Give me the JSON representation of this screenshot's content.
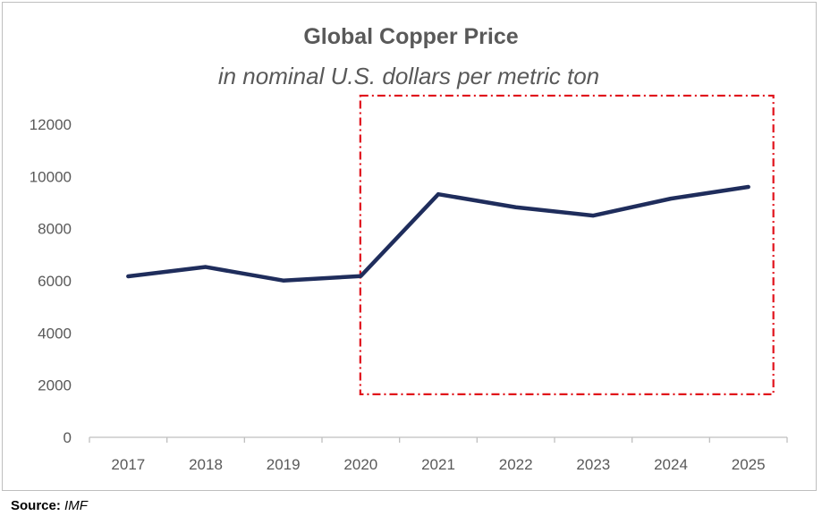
{
  "chart_data": {
    "type": "line",
    "title": "Global Copper Price",
    "subtitle": "in nominal U.S. dollars per metric ton",
    "xlabel": "",
    "ylabel": "",
    "categories": [
      "2017",
      "2018",
      "2019",
      "2020",
      "2021",
      "2022",
      "2023",
      "2024",
      "2025"
    ],
    "series": [
      {
        "name": "Copper price",
        "values": [
          6170,
          6530,
          6010,
          6180,
          9320,
          8820,
          8500,
          9150,
          9600
        ]
      }
    ],
    "ylim": [
      0,
      12000
    ],
    "yticks": [
      "0",
      "2000",
      "4000",
      "6000",
      "8000",
      "10000",
      "12000"
    ],
    "grid": false,
    "highlight": {
      "from_category": "2020",
      "to_category": "2025",
      "y_range": [
        1650,
        13100
      ]
    },
    "colors": {
      "line": "#1f2d5c",
      "highlight": "#e0121b",
      "text": "#595959",
      "axis": "#bfbfbf"
    }
  },
  "footer": {
    "source_label": "Source:",
    "source_value": "IMF"
  }
}
